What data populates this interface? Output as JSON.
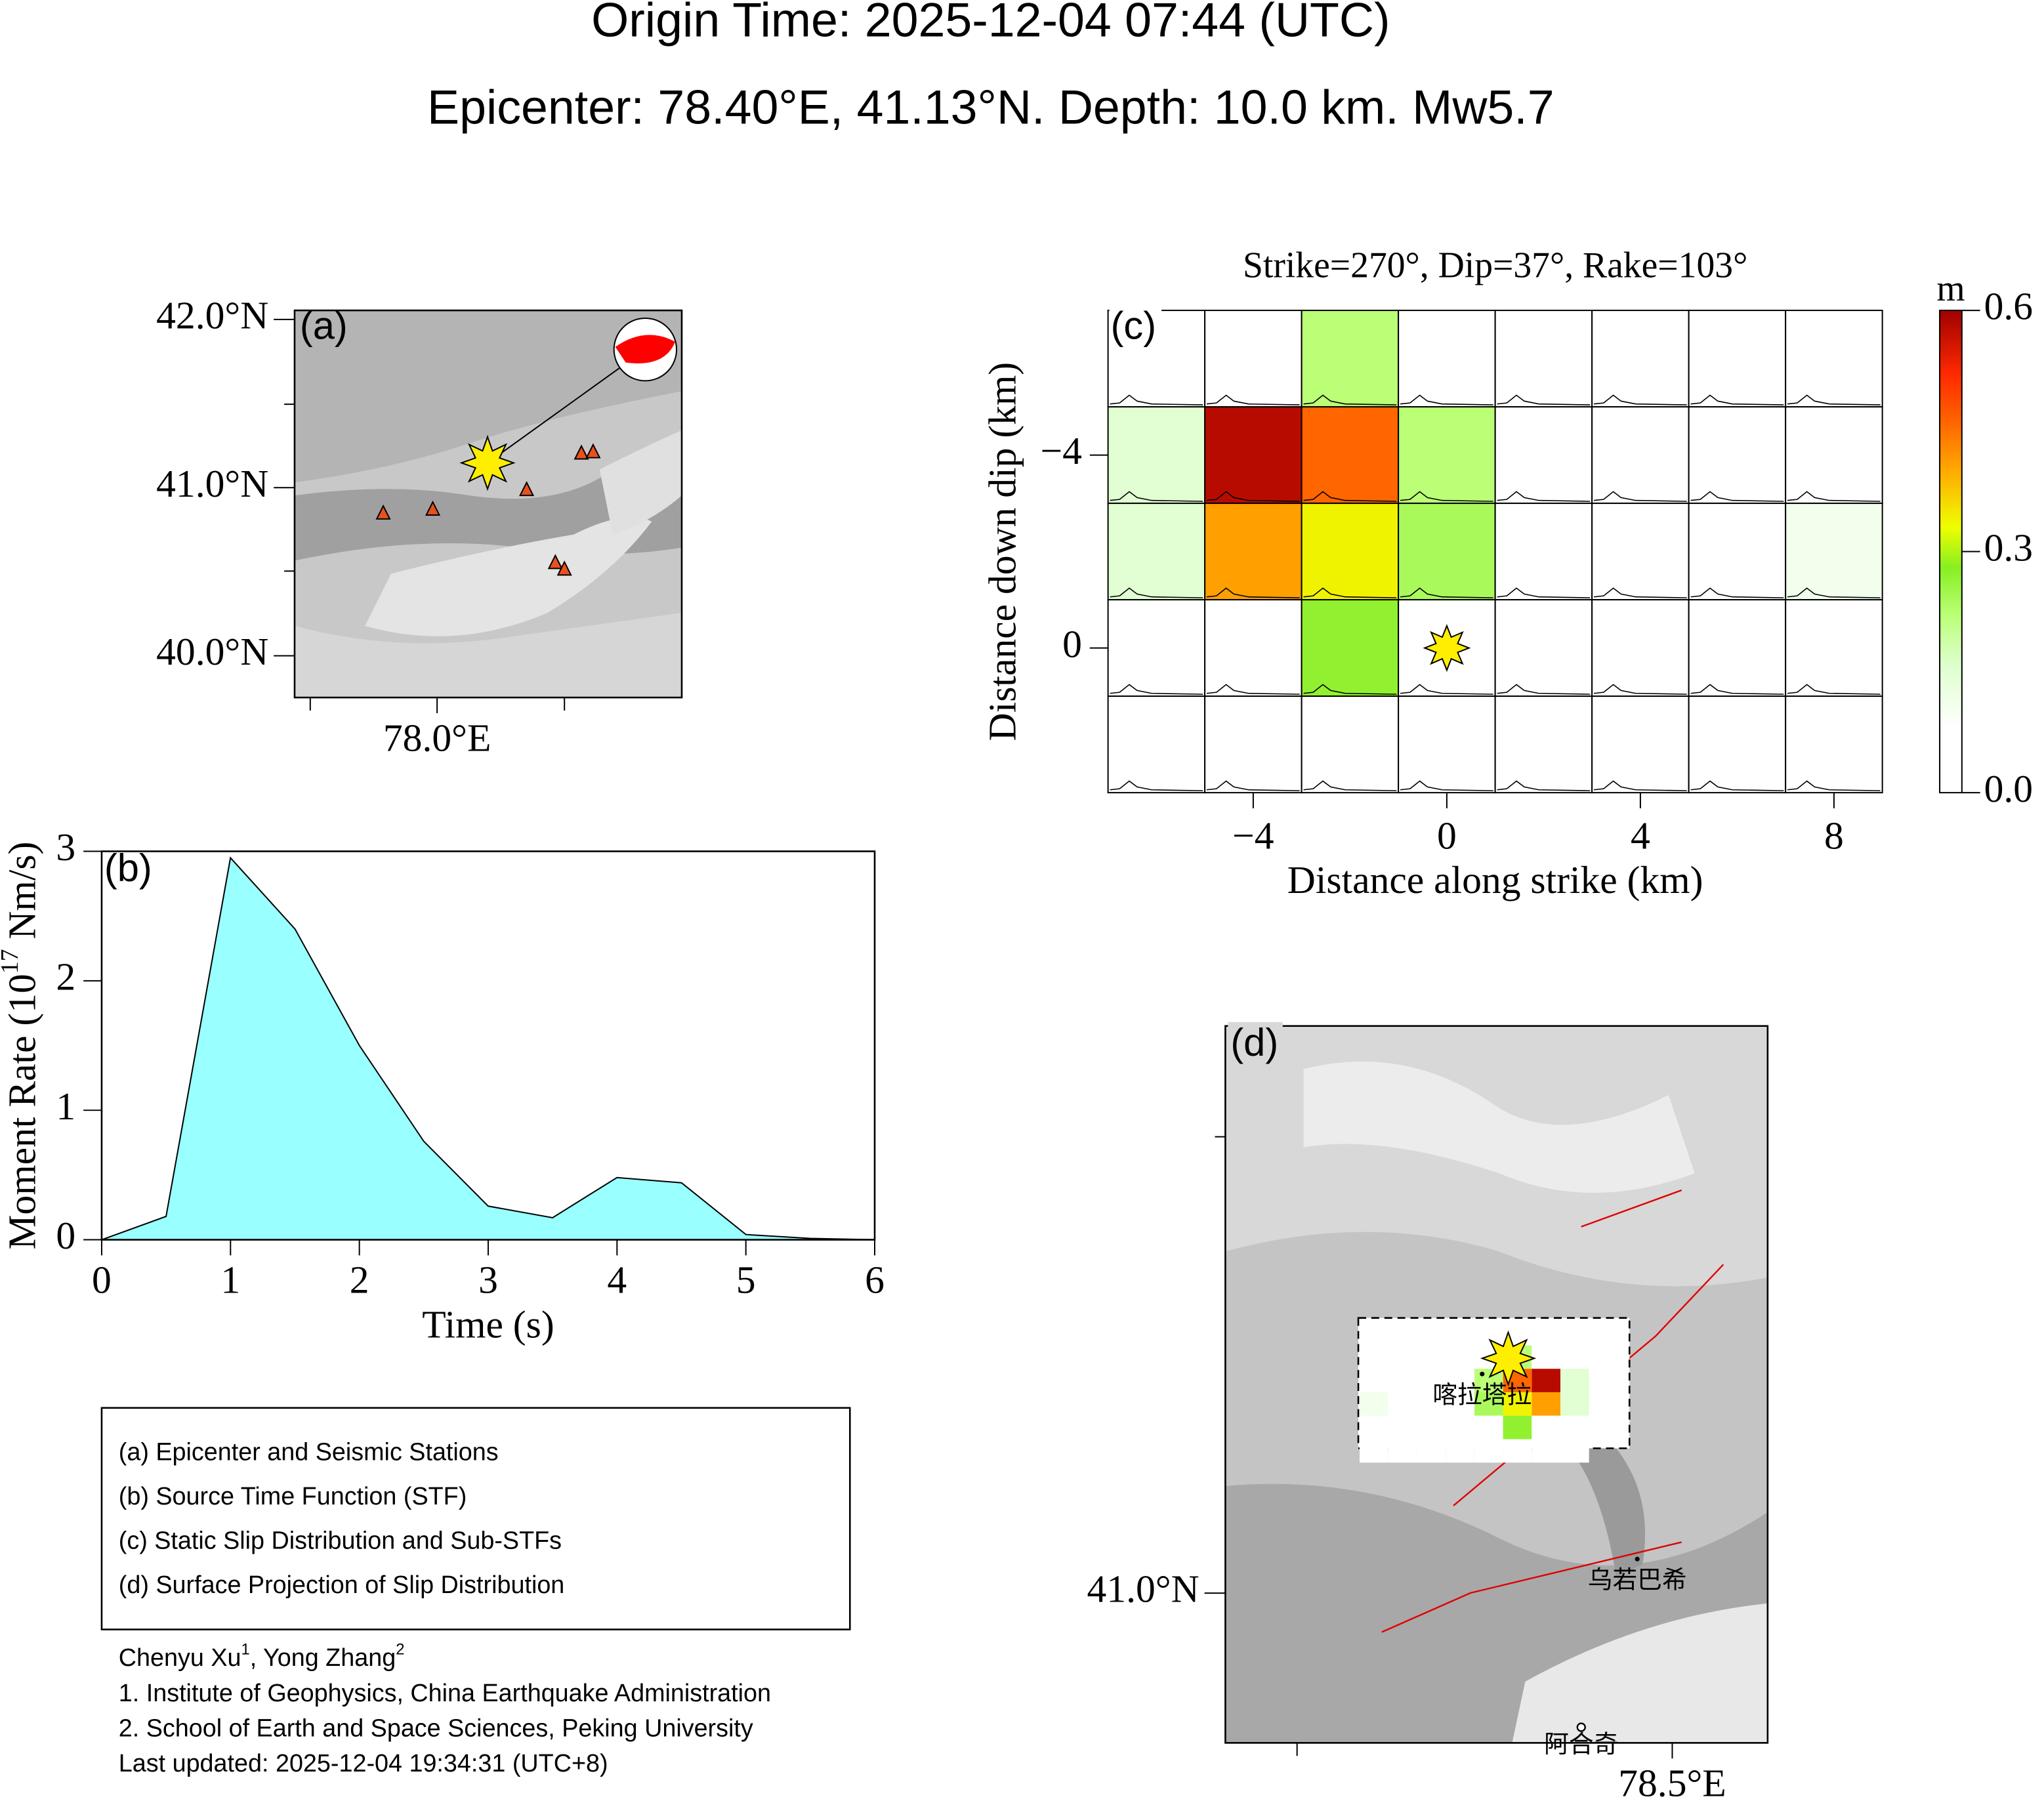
{
  "title": "Origin Time: 2025-12-04 07:44 (UTC)",
  "subtitle": "Epicenter: 78.40°E, 41.13°N. Depth: 10.0 km. Mw5.7",
  "chart_data": [
    {
      "type": "map",
      "panel": "(a)",
      "xlim": [
        76.876,
        79.93
      ],
      "ylim": [
        39.752,
        42.054
      ],
      "xticks": [
        {
          "value": 78.0,
          "label": "78.0°E"
        }
      ],
      "yticks": [
        {
          "value": 40.0,
          "label": "40.0°N"
        },
        {
          "value": 41.0,
          "label": "41.0°N"
        },
        {
          "value": 42.0,
          "label": "42.0°N"
        }
      ]
    },
    {
      "type": "area",
      "panel": "(b)",
      "x_label": "Time (s)",
      "y_label": [
        "Moment Rate (10",
        "17",
        " Nm/s)"
      ],
      "x": [
        0,
        0.5,
        1,
        1.5,
        2,
        2.5,
        3,
        3.5,
        4,
        4.5,
        5,
        5.5,
        6
      ],
      "values": [
        0,
        0.18,
        2.95,
        2.4,
        1.5,
        0.76,
        0.26,
        0.17,
        0.48,
        0.44,
        0.04,
        0.01,
        0
      ],
      "color": "#99ffff",
      "xlim": [
        0,
        6
      ],
      "ylim": [
        0,
        3
      ],
      "xticks": [
        0,
        1,
        2,
        3,
        4,
        5,
        6
      ],
      "yticks": [
        0,
        1,
        2,
        3
      ]
    },
    {
      "type": "heatmap",
      "panel": "(c)",
      "title": "Strike=270°, Dip=37°, Rake=103°",
      "x_label": "Distance along strike (km)",
      "y_label": "Distance down dip (km)",
      "x": [
        -6,
        -4,
        -2,
        0,
        2,
        4,
        6,
        8
      ],
      "y": [
        -6,
        -4,
        -2,
        0,
        2
      ],
      "values": [
        [
          0,
          0,
          0.22,
          0,
          0,
          0,
          0,
          0
        ],
        [
          0.15,
          0.58,
          0.46,
          0.22,
          0,
          0,
          0,
          0
        ],
        [
          0.15,
          0.41,
          0.34,
          0.24,
          0,
          0,
          0,
          0.11
        ],
        [
          0,
          0,
          0.27,
          0,
          0,
          0,
          0,
          0
        ],
        [
          0,
          0,
          0,
          0,
          0,
          0,
          0,
          0
        ]
      ],
      "xlim": [
        -7,
        9
      ],
      "ylim": [
        -7,
        3
      ],
      "xticks": [
        {
          "value": -4,
          "label": "−4"
        },
        0,
        4,
        8
      ],
      "yticks": [
        {
          "value": -4,
          "label": "−4"
        },
        0
      ],
      "colorbar_label": "m",
      "clim": [
        0,
        0.6
      ],
      "cticks": [
        {
          "value": 0,
          "label": "0.0"
        },
        {
          "value": 0.3,
          "label": "0.3"
        },
        {
          "value": 0.6,
          "label": "0.6"
        }
      ],
      "colormap": [
        [
          0,
          "#ffffff"
        ],
        [
          0.08,
          "#ffffff"
        ],
        [
          0.16,
          "#ddffcc"
        ],
        [
          0.22,
          "#bbff77"
        ],
        [
          0.28,
          "#88ee22"
        ],
        [
          0.33,
          "#eeff00"
        ],
        [
          0.4,
          "#ffaa00"
        ],
        [
          0.46,
          "#ff6600"
        ],
        [
          0.52,
          "#ff2a00"
        ],
        [
          0.6,
          "#a00000"
        ]
      ]
    },
    {
      "type": "map",
      "panel": "(d)",
      "xlim": [
        77.905,
        78.627
      ],
      "ylim": [
        40.836,
        41.621
      ],
      "xticks": [
        {
          "value": 78.5,
          "label": "78.5°E"
        }
      ],
      "yticks": [
        {
          "value": 41.0,
          "label": "41.0°N"
        }
      ],
      "places": [
        "喀拉塔拉",
        "乌若巴希",
        "阿合奇"
      ]
    }
  ],
  "legend": [
    "(a) Epicenter and Seismic Stations",
    "(b) Source Time Function (STF)",
    "(c) Static Slip Distribution and Sub-STFs",
    "(d) Surface Projection of Slip Distribution"
  ],
  "authors": [
    "Chenyu Xu",
    "1",
    ", Yong Zhang",
    "2"
  ],
  "affiliations": [
    "1. Institute of Geophysics, China Earthquake Administration",
    "2. School of Earth and Space Sciences, Peking University"
  ],
  "last_updated": "Last updated: 2025-12-04 19:34:31 (UTC+8)"
}
